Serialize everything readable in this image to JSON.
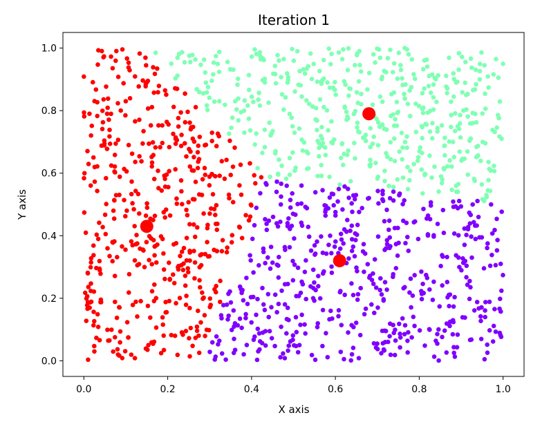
{
  "chart_data": {
    "type": "scatter",
    "title": "Iteration 1",
    "xlabel": "X axis",
    "ylabel": "Y axis",
    "xlim": [
      -0.05,
      1.05
    ],
    "ylim": [
      -0.05,
      1.05
    ],
    "xticks": [
      {
        "value": 0.0,
        "label": "0.0"
      },
      {
        "value": 0.2,
        "label": "0.2"
      },
      {
        "value": 0.4,
        "label": "0.4"
      },
      {
        "value": 0.6,
        "label": "0.6"
      },
      {
        "value": 0.8,
        "label": "0.8"
      },
      {
        "value": 1.0,
        "label": "1.0"
      }
    ],
    "yticks": [
      {
        "value": 0.0,
        "label": "0.0"
      },
      {
        "value": 0.2,
        "label": "0.2"
      },
      {
        "value": 0.4,
        "label": "0.4"
      },
      {
        "value": 0.6,
        "label": "0.6"
      },
      {
        "value": 0.8,
        "label": "0.8"
      },
      {
        "value": 1.0,
        "label": "1.0"
      }
    ],
    "grid": false,
    "legend": false,
    "point_count": 1500,
    "clusters": [
      {
        "color": "#ff0000",
        "centroid": [
          0.15,
          0.43
        ]
      },
      {
        "color": "#8000ff",
        "centroid": [
          0.61,
          0.32
        ]
      },
      {
        "color": "#80ffb4",
        "centroid": [
          0.68,
          0.79
        ]
      }
    ],
    "centroid_color": "#ff0000"
  }
}
